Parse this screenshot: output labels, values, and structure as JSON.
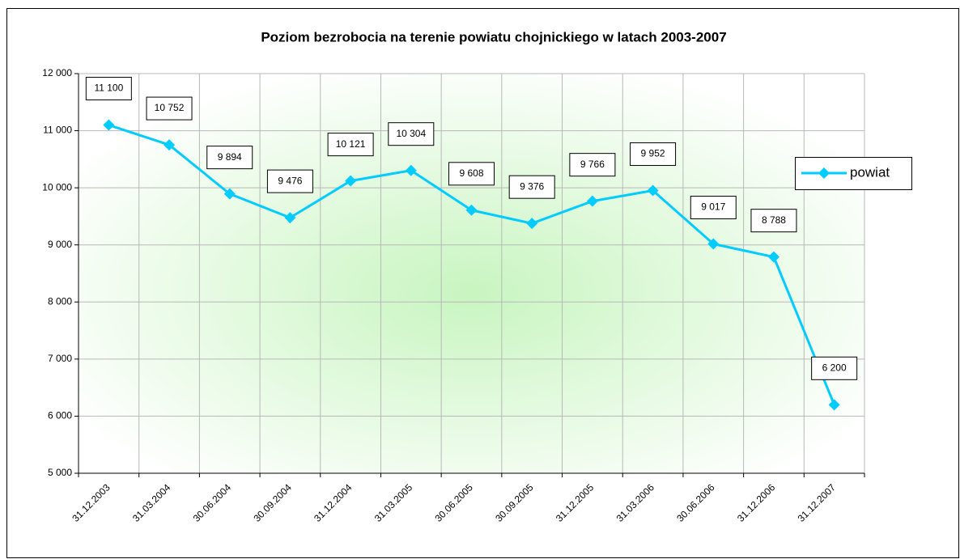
{
  "chart_data": {
    "type": "line",
    "title": "Poziom bezrobocia na terenie powiatu chojnickiego w latach 2003-2007",
    "categories": [
      "31.12.2003",
      "31.03.2004",
      "30.06.2004",
      "30.09.2004",
      "31.12.2004",
      "31.03.2005",
      "30.06.2005",
      "30.09.2005",
      "31.12.2005",
      "31.03.2006",
      "30.06.2006",
      "31.12.2006",
      "31.12.2007"
    ],
    "series": [
      {
        "name": "powiat",
        "color": "#00ccff",
        "values": [
          11100,
          10752,
          9894,
          9476,
          10121,
          10304,
          9608,
          9376,
          9766,
          9952,
          9017,
          8788,
          6200
        ],
        "value_labels": [
          "11 100",
          "10 752",
          "9 894",
          "9 476",
          "10 121",
          "10 304",
          "9 608",
          "9 376",
          "9 766",
          "9 952",
          "9 017",
          "8 788",
          "6 200"
        ]
      }
    ],
    "ylim": [
      5000,
      12000
    ],
    "yticks": [
      {
        "value": 5000,
        "label": "5 000"
      },
      {
        "value": 6000,
        "label": "6 000"
      },
      {
        "value": 7000,
        "label": "7 000"
      },
      {
        "value": 8000,
        "label": "8 000"
      },
      {
        "value": 9000,
        "label": "9 000"
      },
      {
        "value": 10000,
        "label": "10 000"
      },
      {
        "value": 11000,
        "label": "11 000"
      },
      {
        "value": 12000,
        "label": "12 000"
      }
    ],
    "grid": true,
    "legend": "right"
  }
}
